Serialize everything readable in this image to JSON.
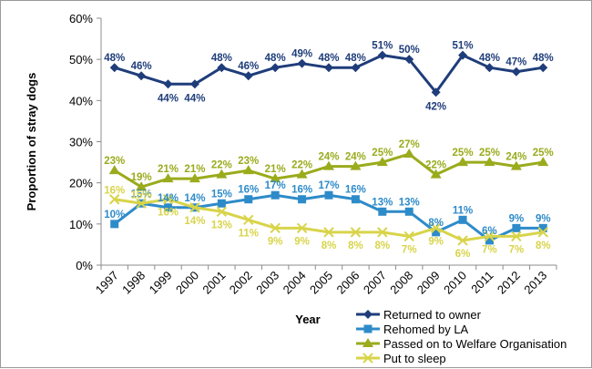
{
  "chart_data": {
    "type": "line",
    "title": "",
    "xlabel": "Year",
    "ylabel": "Proportion of stray dogs",
    "ylim": [
      0,
      60
    ],
    "yticks": [
      "0%",
      "10%",
      "20%",
      "30%",
      "40%",
      "50%",
      "60%"
    ],
    "grid": false,
    "legend_position": "bottom-right",
    "categories": [
      "1997",
      "1998",
      "1999",
      "2000",
      "2001",
      "2002",
      "2003",
      "2004",
      "2005",
      "2006",
      "2007",
      "2008",
      "2009",
      "2010",
      "2011",
      "2012",
      "2013"
    ],
    "series": [
      {
        "name": "Returned to owner",
        "color": "#1f3d7a",
        "marker": "diamond",
        "values": [
          48,
          46,
          44,
          44,
          48,
          46,
          48,
          49,
          48,
          48,
          51,
          50,
          42,
          51,
          48,
          47,
          48
        ],
        "labels": [
          "48%",
          "46%",
          "44%",
          "44%",
          "48%",
          "46%",
          "48%",
          "49%",
          "48%",
          "48%",
          "51%",
          "50%",
          "42%",
          "51%",
          "48%",
          "47%",
          "48%"
        ]
      },
      {
        "name": "Rehomed by LA",
        "color": "#2e8bc9",
        "marker": "square",
        "values": [
          10,
          15,
          14,
          14,
          15,
          16,
          17,
          16,
          17,
          16,
          13,
          13,
          8,
          11,
          6,
          9,
          9
        ],
        "labels": [
          "10%",
          "15%",
          "14%",
          "14%",
          "15%",
          "16%",
          "17%",
          "16%",
          "17%",
          "16%",
          "13%",
          "13%",
          "8%",
          "11%",
          "6%",
          "9%",
          "9%"
        ]
      },
      {
        "name": "Passed on to Welfare Organisation",
        "color": "#9aab1c",
        "marker": "triangle",
        "values": [
          23,
          19,
          21,
          21,
          22,
          23,
          21,
          22,
          24,
          24,
          25,
          27,
          22,
          25,
          25,
          24,
          25
        ],
        "labels": [
          "23%",
          "19%",
          "21%",
          "21%",
          "22%",
          "23%",
          "21%",
          "22%",
          "24%",
          "24%",
          "25%",
          "27%",
          "22%",
          "25%",
          "25%",
          "24%",
          "25%"
        ]
      },
      {
        "name": "Put to sleep",
        "color": "#d8d44a",
        "marker": "x",
        "values": [
          16,
          15,
          16,
          14,
          13,
          11,
          9,
          9,
          8,
          8,
          8,
          7,
          9,
          6,
          7,
          7,
          8
        ],
        "labels": [
          "16%",
          "15%",
          "16%",
          "14%",
          "13%",
          "11%",
          "9%",
          "9%",
          "8%",
          "8%",
          "8%",
          "7%",
          "9%",
          "6%",
          "7%",
          "7%",
          "8%"
        ]
      }
    ]
  }
}
